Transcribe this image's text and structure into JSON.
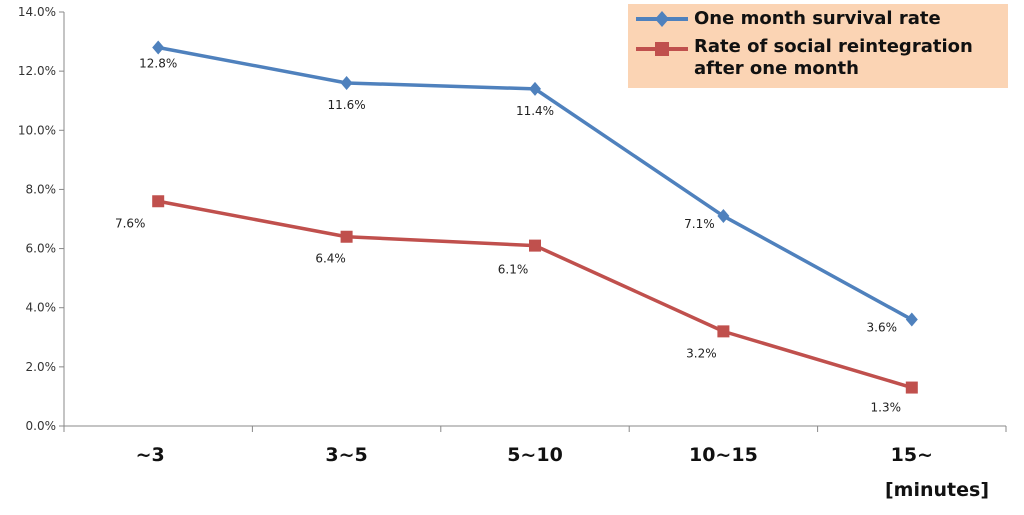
{
  "chart_data": {
    "type": "line",
    "categories": [
      "~3",
      "3~5",
      "5~10",
      "10~15",
      "15~"
    ],
    "xlabel": "[minutes]",
    "ylabel": "",
    "ylim": [
      0,
      14
    ],
    "yticks": [
      "0.0%",
      "2.0%",
      "4.0%",
      "6.0%",
      "8.0%",
      "10.0%",
      "12.0%",
      "14.0%"
    ],
    "grid": false,
    "legend_position": "top-right",
    "series": [
      {
        "name": "One month survival rate",
        "color": "#4f81bd",
        "marker": "diamond",
        "values": [
          12.8,
          11.6,
          11.4,
          7.1,
          3.6
        ],
        "labels": [
          "12.8%",
          "11.6%",
          "11.4%",
          "7.1%",
          "3.6%"
        ]
      },
      {
        "name": "Rate of social reintegration after one month",
        "color": "#c0504d",
        "marker": "square",
        "values": [
          7.6,
          6.4,
          6.1,
          3.2,
          1.3
        ],
        "labels": [
          "7.6%",
          "6.4%",
          "6.1%",
          "3.2%",
          "1.3%"
        ]
      }
    ]
  }
}
